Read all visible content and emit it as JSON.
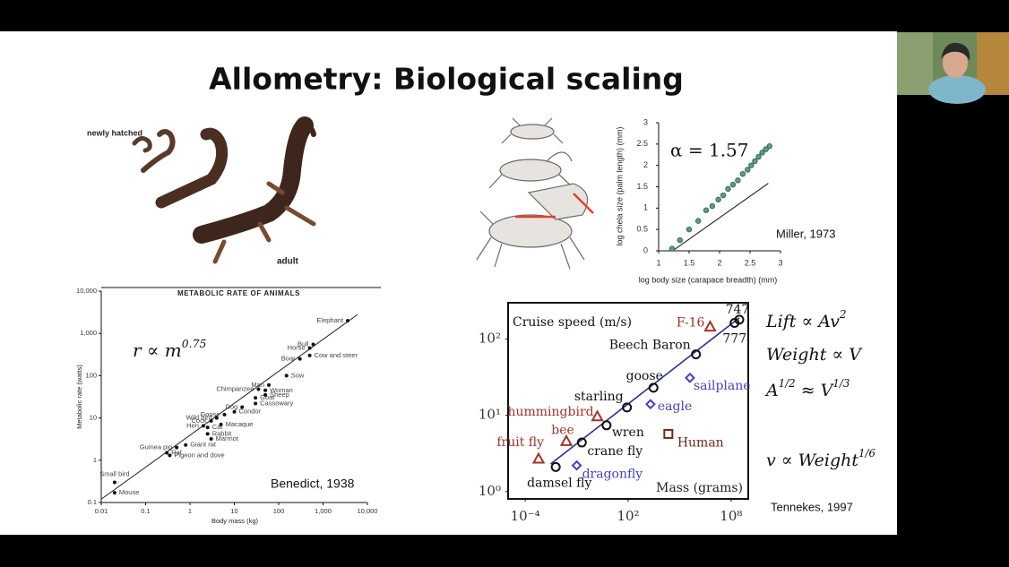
{
  "slide": {
    "title": "Allometry: Biological scaling",
    "salamander_labels": [
      "newly hatched",
      "adult"
    ]
  },
  "chart_data": [
    {
      "type": "scatter",
      "title": "METABOLIC RATE OF ANIMALS",
      "xlabel": "Body mass (kg)",
      "ylabel": "Metabolic rate (watts)",
      "xscale": "log",
      "yscale": "log",
      "xlim": [
        0.01,
        10000
      ],
      "ylim": [
        0.1,
        10000
      ],
      "xticks": [
        0.01,
        0.1,
        1,
        10,
        100,
        {
          "value": 1000,
          "label": "1,000"
        },
        {
          "value": 10000,
          "label": "10,000"
        }
      ],
      "yticks": [
        0.1,
        1,
        10,
        100,
        {
          "value": 1000,
          "label": "1,000"
        },
        {
          "value": 10000,
          "label": "10,000"
        }
      ],
      "color": "#111111",
      "points": [
        {
          "label": "Mouse",
          "x": 0.02,
          "y": 0.17
        },
        {
          "label": "Small bird",
          "x": 0.02,
          "y": 0.3
        },
        {
          "label": "Pigeon and dove",
          "x": 0.35,
          "y": 1.3
        },
        {
          "label": "Rat",
          "x": 0.3,
          "y": 1.5
        },
        {
          "label": "Guinea pig",
          "x": 0.5,
          "y": 2
        },
        {
          "label": "Giant rat",
          "x": 0.8,
          "y": 2.3
        },
        {
          "label": "Marmot",
          "x": 3,
          "y": 3.2
        },
        {
          "label": "Rabbit",
          "x": 2.5,
          "y": 4.2
        },
        {
          "label": "Cat",
          "x": 2.5,
          "y": 6
        },
        {
          "label": "Hen",
          "x": 2,
          "y": 6.5
        },
        {
          "label": "Cock",
          "x": 3,
          "y": 8.5
        },
        {
          "label": "Macaque",
          "x": 5,
          "y": 7
        },
        {
          "label": "Wild bird",
          "x": 4,
          "y": 10
        },
        {
          "label": "Goose",
          "x": 6,
          "y": 12
        },
        {
          "label": "Condor",
          "x": 10,
          "y": 14
        },
        {
          "label": "Dog",
          "x": 15,
          "y": 18
        },
        {
          "label": "Cassowary",
          "x": 30,
          "y": 22
        },
        {
          "label": "Goat",
          "x": 30,
          "y": 30
        },
        {
          "label": "Sheep",
          "x": 50,
          "y": 35
        },
        {
          "label": "Woman",
          "x": 50,
          "y": 45
        },
        {
          "label": "Chimpanzee",
          "x": 35,
          "y": 48
        },
        {
          "label": "Man",
          "x": 60,
          "y": 60
        },
        {
          "label": "Sow",
          "x": 150,
          "y": 100
        },
        {
          "label": "Boar",
          "x": 300,
          "y": 250
        },
        {
          "label": "Cow and steer",
          "x": 500,
          "y": 300
        },
        {
          "label": "Horse",
          "x": 500,
          "y": 450
        },
        {
          "label": "Bull",
          "x": 600,
          "y": 550
        },
        {
          "label": "Elephant",
          "x": 3600,
          "y": 2000
        }
      ],
      "fit": {
        "x": [
          0.01,
          6000
        ],
        "y": [
          0.12,
          2800
        ],
        "line_color": "#222222"
      },
      "annotations": [
        [
          "r ∝ m",
          "0.75"
        ],
        "Benedict, 1938"
      ]
    },
    {
      "type": "scatter",
      "xlabel": "log body size (carapace breadth) (mm)",
      "ylabel": "log chela size (palm length) (mm)",
      "xscale": "linear",
      "yscale": "linear",
      "xlim": [
        1,
        3
      ],
      "ylim": [
        0,
        3
      ],
      "xticks": [
        1,
        1.5,
        2,
        2.5,
        3
      ],
      "yticks": [
        0,
        0.5,
        1,
        1.5,
        2,
        2.5,
        3
      ],
      "color": "#5a9c86",
      "x": [
        1.22,
        1.35,
        1.5,
        1.65,
        1.78,
        1.88,
        1.98,
        2.06,
        2.14,
        2.22,
        2.3,
        2.38,
        2.46,
        2.52,
        2.58,
        2.64,
        2.7,
        2.76,
        2.82
      ],
      "y": [
        0.05,
        0.25,
        0.5,
        0.7,
        0.95,
        1.05,
        1.2,
        1.3,
        1.45,
        1.55,
        1.65,
        1.8,
        1.9,
        2.0,
        2.1,
        2.2,
        2.3,
        2.38,
        2.45
      ],
      "fit": {
        "x": [
          1.25,
          2.8
        ],
        "y": [
          0.02,
          1.58
        ],
        "line_color": "#111111"
      },
      "annotations": [
        "α = 1.57",
        "Miller, 1973"
      ]
    },
    {
      "type": "scatter",
      "xlabel": "Mass (grams)",
      "ylabel": "Cruise speed (m/s)",
      "xscale": "log",
      "yscale": "log",
      "xlim": [
        1e-05,
        1000000000
      ],
      "ylim": [
        0.8,
        300
      ],
      "xticks": [
        {
          "value": 0.0001,
          "label": "10⁻⁴"
        },
        {
          "value": 100,
          "label": "10²"
        },
        {
          "value": 100000000,
          "label": "10⁸"
        }
      ],
      "yticks": [
        {
          "value": 1,
          "label": "10⁰"
        },
        {
          "value": 10,
          "label": "10¹"
        },
        {
          "value": 100,
          "label": "10²"
        }
      ],
      "points": [
        {
          "label": "damsel fly",
          "x": 0.006,
          "y": 2.1,
          "color": "#111111",
          "marker": "circle"
        },
        {
          "label": "crane fly",
          "x": 0.2,
          "y": 4.4,
          "color": "#111111",
          "marker": "circle"
        },
        {
          "label": "wren",
          "x": 5.5,
          "y": 7.4,
          "color": "#111111",
          "marker": "circle"
        },
        {
          "label": "starling",
          "x": 85,
          "y": 12.7,
          "color": "#111111",
          "marker": "circle"
        },
        {
          "label": "goose",
          "x": 3000,
          "y": 23,
          "color": "#111111",
          "marker": "circle"
        },
        {
          "label": "Beech Baron",
          "x": 900000,
          "y": 63,
          "color": "#111111",
          "marker": "circle"
        },
        {
          "label": "747",
          "x": 300000000,
          "y": 180,
          "color": "#111111",
          "marker": "circle"
        },
        {
          "label": "777",
          "x": 160000000,
          "y": 163,
          "color": "#111111",
          "marker": "circle"
        },
        {
          "label": "fruit fly",
          "x": 0.0006,
          "y": 2.7,
          "color": "#a0342a",
          "marker": "triangle"
        },
        {
          "label": "bee",
          "x": 0.025,
          "y": 4.6,
          "color": "#a0342a",
          "marker": "triangle"
        },
        {
          "label": "hummingbird",
          "x": 1.6,
          "y": 9.7,
          "color": "#a0342a",
          "marker": "triangle"
        },
        {
          "label": "F-16",
          "x": 6000000,
          "y": 146,
          "color": "#a0342a",
          "marker": "triangle"
        },
        {
          "label": "dragonfly",
          "x": 0.1,
          "y": 2.2,
          "color": "#4444bb",
          "marker": "diamond"
        },
        {
          "label": "eagle",
          "x": 2000,
          "y": 14,
          "color": "#4444bb",
          "marker": "diamond"
        },
        {
          "label": "sailplane",
          "x": 400000,
          "y": 31,
          "color": "#4444bb",
          "marker": "diamond"
        },
        {
          "label": "Human",
          "x": 22000,
          "y": 5.7,
          "color": "#6b2a1a",
          "marker": "square"
        }
      ],
      "fit": {
        "x": [
          0.003,
          300000000
        ],
        "y": [
          2.3,
          190
        ],
        "line_color": "#22338a"
      },
      "annotations": [
        [
          "Lift ∝ Av",
          "2"
        ],
        [
          "Weight ∝ V"
        ],
        [
          "A",
          "1/2",
          " ≈ V",
          "1/3"
        ],
        [
          "v ∝ Weight",
          "1/6"
        ],
        "Tennekes, 1997"
      ]
    }
  ]
}
